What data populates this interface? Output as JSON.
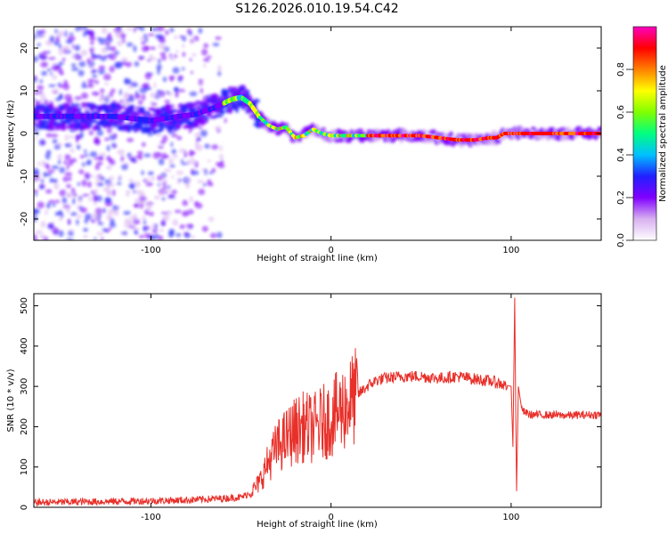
{
  "title": "S126.2026.010.19.54.C42",
  "chart_data": [
    {
      "type": "heatmap",
      "title": "S126.2026.010.19.54.C42",
      "xlabel": "Height of straight line (km)",
      "ylabel": "Frequency (Hz)",
      "xlim": [
        -165,
        150
      ],
      "ylim": [
        -25,
        25
      ],
      "xticks": [
        -100,
        0,
        100
      ],
      "xtick_labels": [
        "-100",
        "0",
        "100"
      ],
      "yticks": [
        -20,
        -10,
        0,
        10,
        20
      ],
      "ytick_labels": [
        "-20",
        "-10",
        "0",
        "10",
        "20"
      ],
      "ridge": {
        "x": [
          -165,
          -140,
          -120,
          -100,
          -85,
          -75,
          -65,
          -60,
          -55,
          -50,
          -45,
          -40,
          -35,
          -30,
          -25,
          -20,
          -15,
          -10,
          -5,
          0,
          10,
          30,
          50,
          70,
          80,
          88,
          92,
          96,
          110,
          130,
          150
        ],
        "y": [
          4,
          4,
          4,
          3,
          4,
          4.5,
          6,
          7,
          8,
          8.5,
          7,
          4,
          2,
          1,
          1.5,
          -1,
          -0.5,
          1,
          0,
          -0.5,
          -0.5,
          -0.5,
          -0.5,
          -1.5,
          -1.5,
          -1,
          -1,
          0,
          0,
          0,
          0
        ]
      },
      "colorbar": {
        "label": "Normalized spectral amplitude",
        "range": [
          0.0,
          1.0
        ],
        "ticks": [
          0.0,
          0.2,
          0.4,
          0.6,
          0.8
        ],
        "tick_labels": [
          "0.0",
          "0.2",
          "0.4",
          "0.6",
          "0.8"
        ],
        "colors": [
          "#ffffff",
          "#d8b0f0",
          "#8000ff",
          "#2020ff",
          "#00c0ff",
          "#00ff80",
          "#80ff00",
          "#ffff00",
          "#ff8000",
          "#ff0000",
          "#ff00c0"
        ]
      }
    },
    {
      "type": "line",
      "xlabel": "Height of straight line (km)",
      "ylabel": "SNR (10 * v/v)",
      "xlim": [
        -165,
        150
      ],
      "ylim": [
        0,
        530
      ],
      "xticks": [
        -100,
        0,
        100
      ],
      "xtick_labels": [
        "-100",
        "0",
        "100"
      ],
      "yticks": [
        0,
        100,
        200,
        300,
        400,
        500
      ],
      "ytick_labels": [
        "0",
        "100",
        "200",
        "300",
        "400",
        "500"
      ],
      "series": [
        {
          "name": "SNR",
          "color": "#e8302a",
          "x": [
            -165,
            -130,
            -100,
            -80,
            -60,
            -50,
            -45,
            -40,
            -35,
            -30,
            -25,
            -20,
            -15,
            -10,
            -5,
            0,
            5,
            10,
            15,
            20,
            25,
            30,
            40,
            50,
            60,
            70,
            80,
            90,
            95,
            100,
            101,
            102,
            103,
            104,
            106,
            110,
            130,
            150
          ],
          "values": [
            12,
            14,
            16,
            18,
            22,
            25,
            35,
            60,
            110,
            150,
            170,
            190,
            200,
            195,
            210,
            220,
            240,
            260,
            280,
            300,
            315,
            320,
            325,
            325,
            320,
            325,
            318,
            312,
            305,
            300,
            150,
            520,
            40,
            300,
            240,
            230,
            228,
            230
          ]
        }
      ]
    }
  ]
}
